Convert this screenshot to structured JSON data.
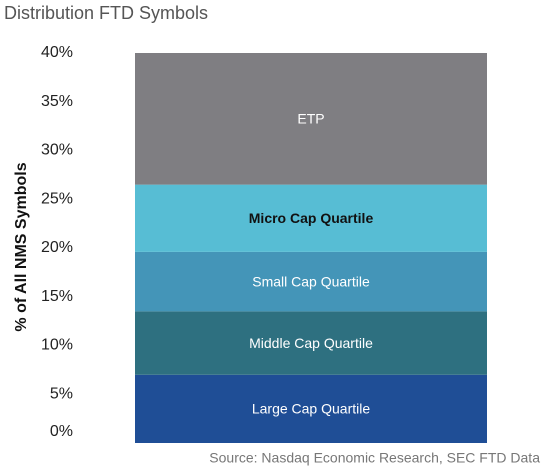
{
  "chart_data": {
    "type": "stacked_bar",
    "title": "Distribution FTD Symbols",
    "y_label": "% of All NMS Symbols",
    "source": "Source: Nasdaq Economic Research, SEC FTD Data",
    "categories": [
      null
    ],
    "series": [
      {
        "name": "Large Cap Quartile",
        "color": "#1f4e96",
        "values": [
          7.0
        ]
      },
      {
        "name": "Middle Cap Quartile",
        "color": "#2e7080",
        "values": [
          6.5
        ]
      },
      {
        "name": "Small Cap Quartile",
        "color": "#4495b8",
        "values": [
          6.1
        ]
      },
      {
        "name": "Micro Cap Quartile",
        "color": "#57bdd4",
        "values": [
          6.9
        ]
      },
      {
        "name": "ETP",
        "color": "#7f7e82",
        "values": [
          13.5
        ]
      }
    ],
    "ylim": [
      0,
      40
    ],
    "yticks": [
      {
        "value": 0,
        "label": "0%"
      },
      {
        "value": 5,
        "label": "5%"
      },
      {
        "value": 10,
        "label": "10%"
      },
      {
        "value": 15,
        "label": "15%"
      },
      {
        "value": 20,
        "label": "20%"
      },
      {
        "value": 25,
        "label": "25%"
      },
      {
        "value": 30,
        "label": "30%"
      },
      {
        "value": 35,
        "label": "35%"
      },
      {
        "value": 40,
        "label": "40%"
      }
    ]
  }
}
